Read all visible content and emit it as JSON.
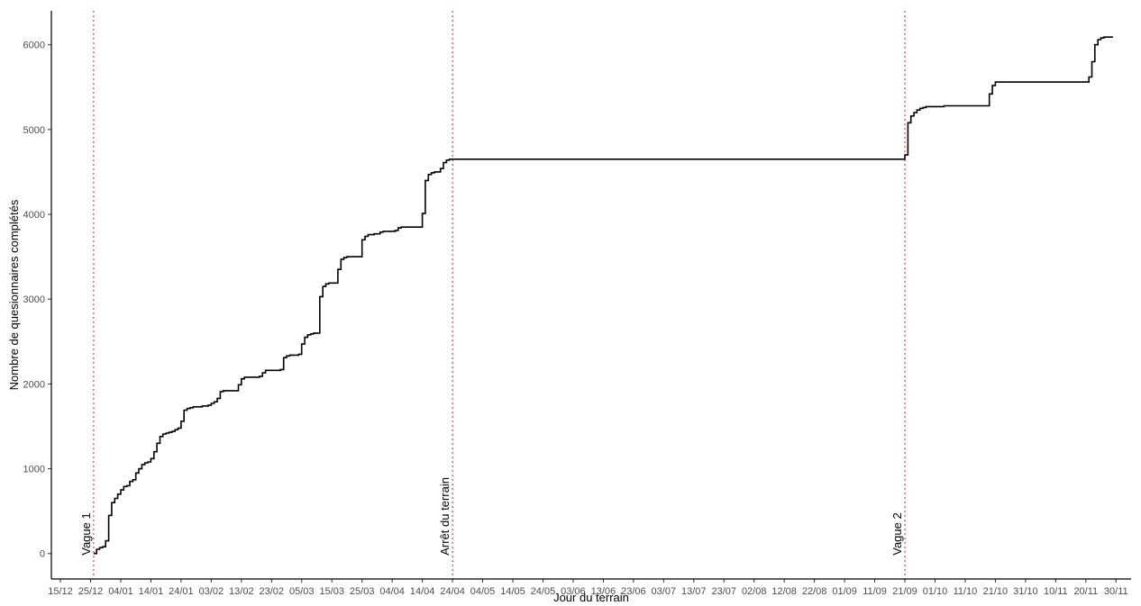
{
  "chart_data": {
    "type": "line",
    "title": "",
    "xlabel": "Jour du terrain",
    "ylabel": "Nombre de quesionnaires complétés",
    "ylim": [
      -300,
      6400
    ],
    "yticks": [
      0,
      1000,
      2000,
      3000,
      4000,
      5000,
      6000
    ],
    "xticks": [
      "15/12",
      "25/12",
      "04/01",
      "14/01",
      "24/01",
      "03/02",
      "13/02",
      "23/02",
      "05/03",
      "15/03",
      "25/03",
      "04/04",
      "14/04",
      "24/04",
      "04/05",
      "14/05",
      "24/05",
      "03/06",
      "13/06",
      "23/06",
      "03/07",
      "13/07",
      "23/07",
      "02/08",
      "12/08",
      "22/08",
      "01/09",
      "11/09",
      "21/09",
      "01/10",
      "11/10",
      "21/10",
      "31/10",
      "10/11",
      "20/11",
      "30/11"
    ],
    "xlim_days": [
      -3,
      355
    ],
    "grid": false,
    "line_color": "#000000",
    "vline_color": "#e8453c",
    "annotations": [
      {
        "label": "Vague 1",
        "day": 11
      },
      {
        "label": "Arrêt du terrain",
        "day": 130
      },
      {
        "label": "Vague 2",
        "day": 280
      }
    ],
    "series": [
      {
        "points": [
          [
            11,
            0
          ],
          [
            12,
            50
          ],
          [
            13,
            70
          ],
          [
            14,
            80
          ],
          [
            15,
            150
          ],
          [
            16,
            450
          ],
          [
            17,
            600
          ],
          [
            18,
            650
          ],
          [
            19,
            700
          ],
          [
            20,
            750
          ],
          [
            21,
            790
          ],
          [
            22,
            800
          ],
          [
            23,
            850
          ],
          [
            24,
            870
          ],
          [
            25,
            950
          ],
          [
            26,
            1000
          ],
          [
            27,
            1050
          ],
          [
            28,
            1070
          ],
          [
            29,
            1080
          ],
          [
            30,
            1120
          ],
          [
            31,
            1200
          ],
          [
            32,
            1300
          ],
          [
            33,
            1380
          ],
          [
            34,
            1410
          ],
          [
            35,
            1420
          ],
          [
            36,
            1430
          ],
          [
            37,
            1440
          ],
          [
            38,
            1460
          ],
          [
            39,
            1480
          ],
          [
            40,
            1560
          ],
          [
            41,
            1690
          ],
          [
            42,
            1710
          ],
          [
            43,
            1720
          ],
          [
            44,
            1730
          ],
          [
            45,
            1730
          ],
          [
            46,
            1730
          ],
          [
            47,
            1740
          ],
          [
            48,
            1740
          ],
          [
            49,
            1750
          ],
          [
            50,
            1770
          ],
          [
            51,
            1790
          ],
          [
            52,
            1830
          ],
          [
            53,
            1910
          ],
          [
            54,
            1920
          ],
          [
            55,
            1920
          ],
          [
            56,
            1920
          ],
          [
            57,
            1920
          ],
          [
            58,
            1920
          ],
          [
            59,
            1990
          ],
          [
            60,
            2060
          ],
          [
            61,
            2080
          ],
          [
            62,
            2080
          ],
          [
            63,
            2080
          ],
          [
            64,
            2080
          ],
          [
            65,
            2080
          ],
          [
            66,
            2090
          ],
          [
            67,
            2130
          ],
          [
            68,
            2160
          ],
          [
            69,
            2160
          ],
          [
            70,
            2160
          ],
          [
            71,
            2160
          ],
          [
            72,
            2160
          ],
          [
            73,
            2170
          ],
          [
            74,
            2310
          ],
          [
            75,
            2330
          ],
          [
            76,
            2340
          ],
          [
            77,
            2340
          ],
          [
            78,
            2340
          ],
          [
            79,
            2350
          ],
          [
            80,
            2470
          ],
          [
            81,
            2550
          ],
          [
            82,
            2580
          ],
          [
            83,
            2590
          ],
          [
            84,
            2600
          ],
          [
            85,
            2600
          ],
          [
            86,
            3030
          ],
          [
            87,
            3150
          ],
          [
            88,
            3180
          ],
          [
            89,
            3190
          ],
          [
            90,
            3190
          ],
          [
            91,
            3190
          ],
          [
            92,
            3350
          ],
          [
            93,
            3470
          ],
          [
            94,
            3490
          ],
          [
            95,
            3500
          ],
          [
            96,
            3500
          ],
          [
            97,
            3500
          ],
          [
            98,
            3500
          ],
          [
            99,
            3500
          ],
          [
            100,
            3700
          ],
          [
            101,
            3740
          ],
          [
            102,
            3760
          ],
          [
            103,
            3760
          ],
          [
            104,
            3770
          ],
          [
            105,
            3770
          ],
          [
            106,
            3790
          ],
          [
            107,
            3800
          ],
          [
            108,
            3800
          ],
          [
            109,
            3800
          ],
          [
            110,
            3800
          ],
          [
            111,
            3810
          ],
          [
            112,
            3840
          ],
          [
            113,
            3850
          ],
          [
            114,
            3850
          ],
          [
            115,
            3850
          ],
          [
            116,
            3850
          ],
          [
            117,
            3850
          ],
          [
            118,
            3850
          ],
          [
            119,
            3850
          ],
          [
            120,
            4010
          ],
          [
            121,
            4400
          ],
          [
            122,
            4470
          ],
          [
            123,
            4490
          ],
          [
            124,
            4500
          ],
          [
            125,
            4500
          ],
          [
            126,
            4540
          ],
          [
            127,
            4610
          ],
          [
            128,
            4640
          ],
          [
            129,
            4650
          ],
          [
            130,
            4650
          ],
          [
            279,
            4650
          ],
          [
            280,
            4700
          ],
          [
            281,
            5080
          ],
          [
            282,
            5160
          ],
          [
            283,
            5200
          ],
          [
            284,
            5230
          ],
          [
            285,
            5250
          ],
          [
            286,
            5260
          ],
          [
            287,
            5270
          ],
          [
            290,
            5270
          ],
          [
            293,
            5280
          ],
          [
            307,
            5280
          ],
          [
            308,
            5420
          ],
          [
            309,
            5520
          ],
          [
            310,
            5560
          ],
          [
            340,
            5560
          ],
          [
            341,
            5620
          ],
          [
            342,
            5800
          ],
          [
            343,
            6000
          ],
          [
            344,
            6060
          ],
          [
            345,
            6080
          ],
          [
            346,
            6090
          ],
          [
            349,
            6090
          ]
        ]
      }
    ]
  }
}
